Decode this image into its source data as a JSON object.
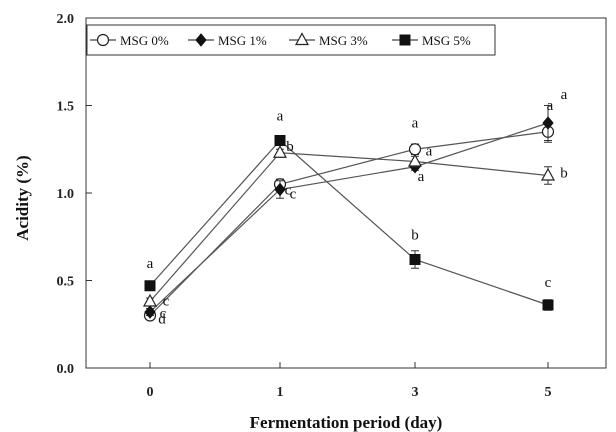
{
  "chart_data": {
    "type": "line",
    "xlabel": "Fermentation period (day)",
    "ylabel": "Acidity  (%)",
    "categories": [
      "0",
      "1",
      "3",
      "5"
    ],
    "ylim": [
      0,
      2
    ],
    "yticks": [
      "0.0",
      "0.5",
      "1.0",
      "1.5",
      "2.0"
    ],
    "grid": false,
    "legend_position": "top-left",
    "series": [
      {
        "name": "MSG 0%",
        "marker": "open-circle",
        "values": [
          0.3,
          1.05,
          1.25,
          1.35
        ],
        "errors": [
          0.02,
          0.03,
          0.03,
          0.06
        ],
        "letters": [
          "d",
          "c",
          "a",
          "a"
        ]
      },
      {
        "name": "MSG 1%",
        "marker": "filled-diamond",
        "values": [
          0.32,
          1.02,
          1.15,
          1.4
        ],
        "errors": [
          0.02,
          0.05,
          0.02,
          0.1
        ],
        "letters": [
          "c",
          "c",
          "a",
          "a"
        ]
      },
      {
        "name": "MSG 3%",
        "marker": "open-triangle",
        "values": [
          0.38,
          1.23,
          1.18,
          1.1
        ],
        "errors": [
          0.02,
          0.02,
          0.03,
          0.05
        ],
        "letters": [
          "c",
          "b",
          "a",
          "b"
        ]
      },
      {
        "name": "MSG 5%",
        "marker": "filled-square",
        "values": [
          0.47,
          1.3,
          0.62,
          0.36
        ],
        "errors": [
          0.02,
          0.02,
          0.05,
          0.03
        ],
        "letters": [
          "a",
          "a",
          "b",
          "c"
        ]
      }
    ]
  }
}
